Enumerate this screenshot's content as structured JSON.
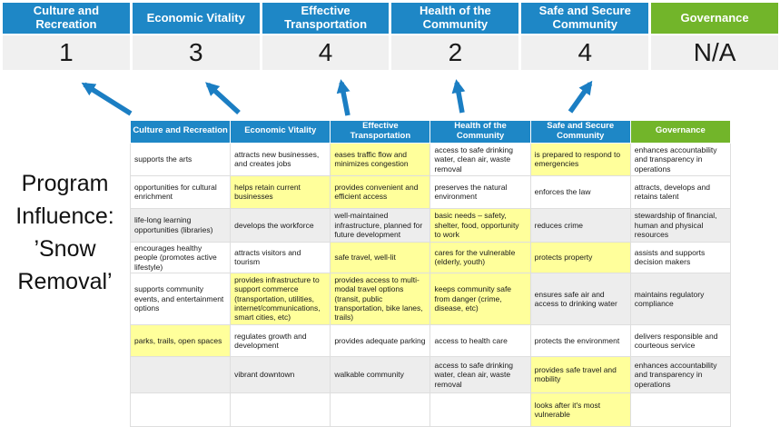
{
  "title": {
    "lines": [
      "Program",
      "Influence:",
      "’Snow",
      "Removal’"
    ],
    "full": "Program Influence: ’Snow Removal’"
  },
  "colors": {
    "blue": "#1E87C6",
    "green": "#72B52A",
    "highlight": "#FFFF9B",
    "band": "#EDEDED",
    "score_bg": "#F0F0F0",
    "arrow": "#1B7EC3"
  },
  "pillars": [
    {
      "label": "Culture and Recreation",
      "score": "1",
      "theme": "blue"
    },
    {
      "label": "Economic Vitality",
      "score": "3",
      "theme": "blue"
    },
    {
      "label": "Effective Transportation",
      "score": "4",
      "theme": "blue"
    },
    {
      "label": "Health of the Community",
      "score": "2",
      "theme": "blue"
    },
    {
      "label": "Safe and Secure Community",
      "score": "4",
      "theme": "blue"
    },
    {
      "label": "Governance",
      "score": "N/A",
      "theme": "green"
    }
  ],
  "arrows": {
    "count": 5,
    "points_to": [
      "Culture and Recreation",
      "Economic Vitality",
      "Effective Transportation",
      "Health of the Community",
      "Safe and Secure Community"
    ]
  },
  "matrix": {
    "rows": [
      [
        {
          "text": "supports the arts",
          "bg": "plain"
        },
        {
          "text": "attracts new businesses, and creates jobs",
          "bg": "plain"
        },
        {
          "text": "eases traffic flow and minimizes congestion",
          "bg": "highlight"
        },
        {
          "text": "access to safe drinking water, clean air, waste removal",
          "bg": "plain"
        },
        {
          "text": "is prepared to respond to emergencies",
          "bg": "highlight"
        },
        {
          "text": "enhances accountability and transparency in operations",
          "bg": "plain"
        }
      ],
      [
        {
          "text": "opportunities for cultural enrichment",
          "bg": "plain"
        },
        {
          "text": "helps retain current businesses",
          "bg": "highlight"
        },
        {
          "text": "provides convenient and efficient access",
          "bg": "highlight"
        },
        {
          "text": "preserves the natural environment",
          "bg": "plain"
        },
        {
          "text": "enforces the law",
          "bg": "plain"
        },
        {
          "text": "attracts, develops and retains talent",
          "bg": "plain"
        }
      ],
      [
        {
          "text": "life-long learning opportunities (libraries)",
          "bg": "band"
        },
        {
          "text": "develops the workforce",
          "bg": "band"
        },
        {
          "text": "well-maintained infrastructure, planned for future development",
          "bg": "band"
        },
        {
          "text": "basic needs – safety, shelter, food, opportunity to work",
          "bg": "highlight"
        },
        {
          "text": "reduces crime",
          "bg": "band"
        },
        {
          "text": "stewardship of financial, human and physical resources",
          "bg": "band"
        }
      ],
      [
        {
          "text": "encourages healthy people (promotes active lifestyle)",
          "bg": "plain"
        },
        {
          "text": "attracts visitors and tourism",
          "bg": "plain"
        },
        {
          "text": "safe travel, well-lit",
          "bg": "highlight"
        },
        {
          "text": "cares for the vulnerable (elderly, youth)",
          "bg": "highlight"
        },
        {
          "text": "protects property",
          "bg": "highlight"
        },
        {
          "text": "assists and supports decision makers",
          "bg": "plain"
        }
      ],
      [
        {
          "text": "supports community events, and entertainment options",
          "bg": "plain"
        },
        {
          "text": "provides infrastructure to support commerce (transportation, utilities, internet/communications, smart cities, etc)",
          "bg": "highlight"
        },
        {
          "text": "provides access to multi-modal travel options (transit, public transportation, bike lanes, trails)",
          "bg": "highlight"
        },
        {
          "text": "keeps community safe from danger (crime, disease, etc)",
          "bg": "highlight"
        },
        {
          "text": "ensures safe air and access to drinking water",
          "bg": "band"
        },
        {
          "text": "maintains regulatory compliance",
          "bg": "band"
        }
      ],
      [
        {
          "text": "parks, trails, open spaces",
          "bg": "highlight"
        },
        {
          "text": "regulates growth and development",
          "bg": "plain"
        },
        {
          "text": "provides adequate parking",
          "bg": "plain"
        },
        {
          "text": "access to health care",
          "bg": "plain"
        },
        {
          "text": "protects the environment",
          "bg": "plain"
        },
        {
          "text": "delivers responsible and courteous service",
          "bg": "plain"
        }
      ],
      [
        {
          "text": "",
          "bg": "band"
        },
        {
          "text": "vibrant downtown",
          "bg": "band"
        },
        {
          "text": "walkable community",
          "bg": "band"
        },
        {
          "text": "access to safe drinking water, clean air, waste removal",
          "bg": "band"
        },
        {
          "text": "provides safe travel and mobility",
          "bg": "highlight"
        },
        {
          "text": "enhances accountability and transparency in operations",
          "bg": "band"
        }
      ],
      [
        {
          "text": "",
          "bg": "plain"
        },
        {
          "text": "",
          "bg": "plain"
        },
        {
          "text": "",
          "bg": "plain"
        },
        {
          "text": "",
          "bg": "plain"
        },
        {
          "text": "looks after it's most vulnerable",
          "bg": "highlight"
        },
        {
          "text": "",
          "bg": "plain"
        }
      ]
    ]
  }
}
